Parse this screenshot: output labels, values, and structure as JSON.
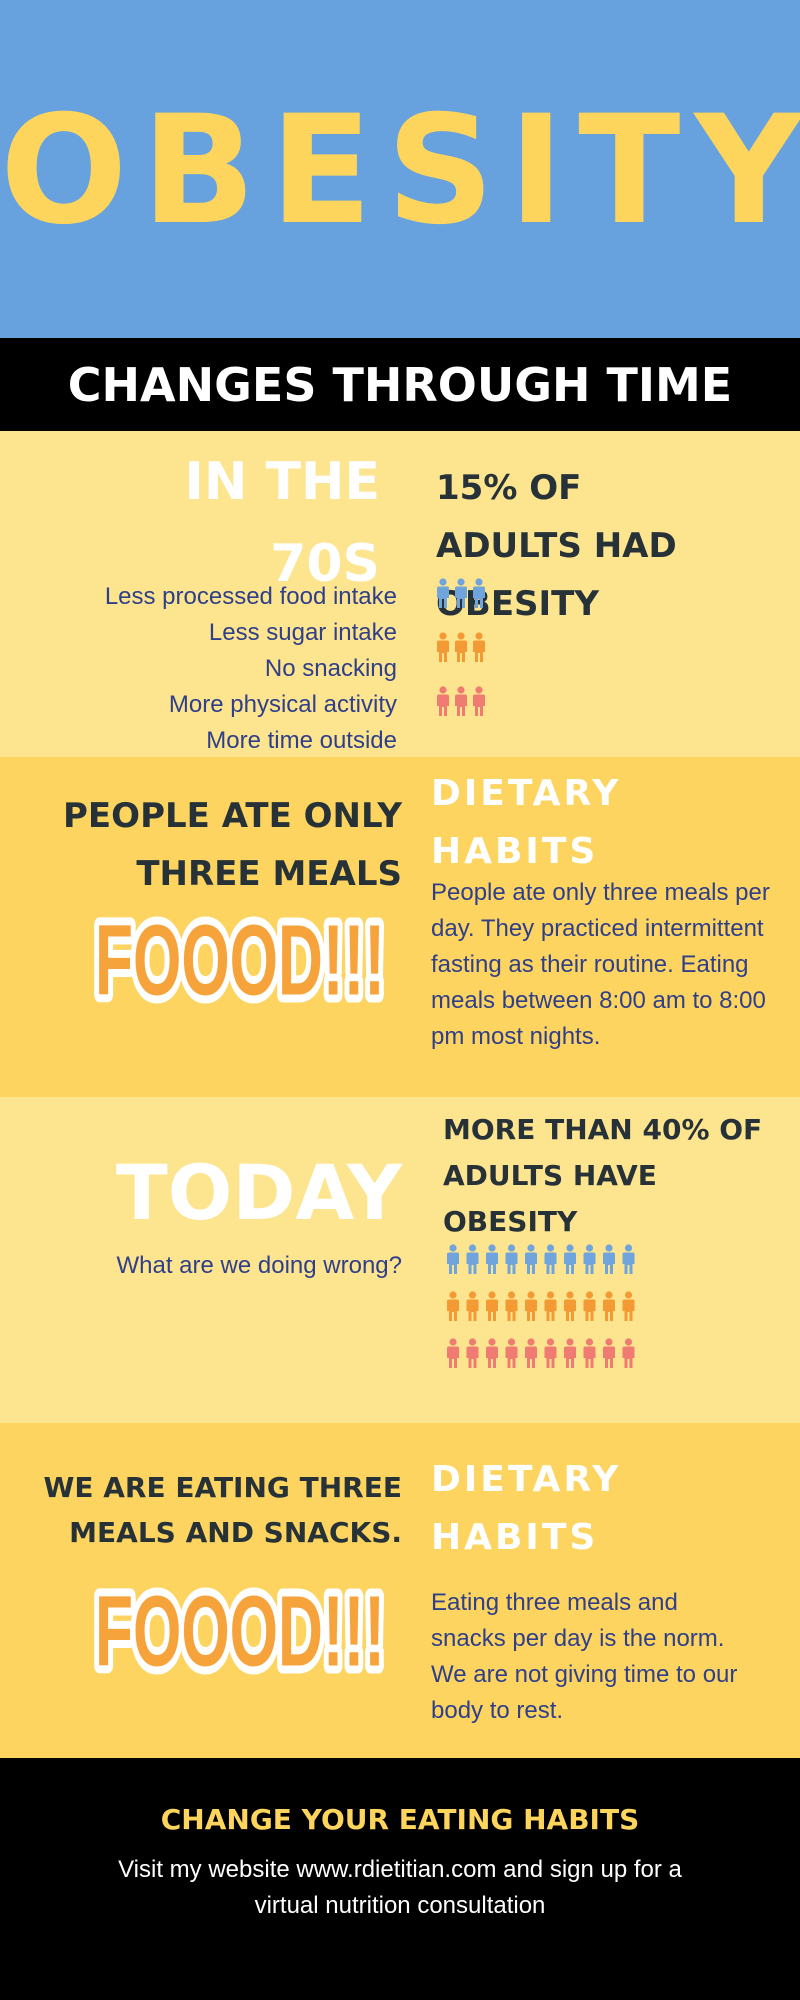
{
  "header": {
    "title": "OBESITY"
  },
  "banner": "CHANGES THROUGH TIME",
  "sections": [
    {
      "heading": "IN THE 70S",
      "items": [
        "Less processed food intake",
        "Less sugar intake",
        "No snacking",
        "More physical activity",
        "More time outside"
      ],
      "stat": "15% OF ADULTS HAD OBESITY"
    },
    {
      "statement": "PEOPLE ATE ONLY THREE MEALS",
      "sticker": "FOOOD!!!",
      "heading": "DIETARY HABITS",
      "text": "People ate only three meals per day. They practiced intermittent fasting as their routine. Eating meals between 8:00 am to 8:00 pm most nights."
    },
    {
      "heading": "TODAY",
      "subheading": "What are we doing wrong?",
      "stat": "MORE THAN 40% OF ADULTS HAVE OBESITY"
    },
    {
      "statement": "WE ARE EATING THREE MEALS AND SNACKS.",
      "sticker": "FOOOD!!!",
      "heading": "DIETARY HABITS",
      "text": "Eating three meals and snacks per day is the norm. We are not giving time to our body to rest."
    }
  ],
  "footer": {
    "title": "CHANGE YOUR EATING HABITS",
    "text": "Visit my website www.rdietitian.com and sign up for a virtual nutrition consultation"
  }
}
